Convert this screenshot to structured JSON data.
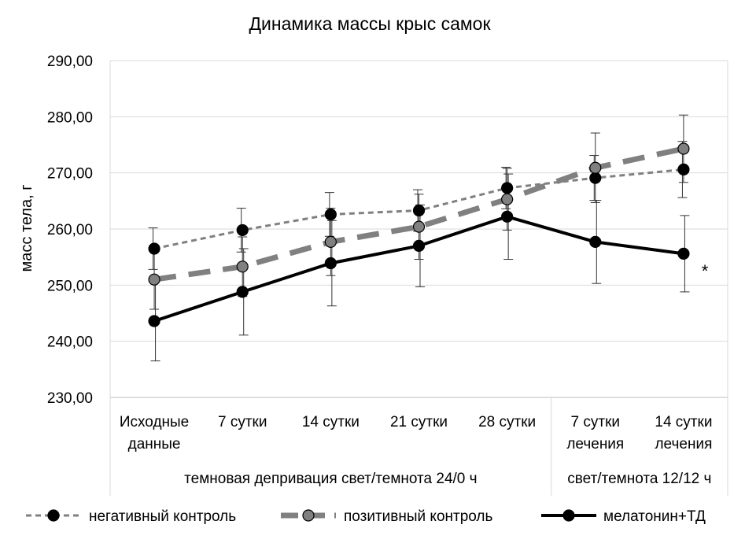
{
  "chart_data": {
    "type": "line",
    "title": "Динамика массы крыс самок",
    "ylabel": "масс тела, г",
    "ylim": [
      230,
      290
    ],
    "y_ticks": [
      "230,00",
      "240,00",
      "250,00",
      "260,00",
      "270,00",
      "280,00",
      "290,00"
    ],
    "y_tick_values": [
      230,
      240,
      250,
      260,
      270,
      280,
      290
    ],
    "categories": [
      [
        "Исходные",
        "данные"
      ],
      [
        "7 сутки"
      ],
      [
        "14 сутки"
      ],
      [
        "21 сутки"
      ],
      [
        "28 сутки"
      ],
      [
        "7 сутки",
        "лечения"
      ],
      [
        "14 сутки",
        "лечения"
      ]
    ],
    "groups": [
      {
        "label": "темновая депривация свет/темнота 24/0 ч",
        "span": [
          0,
          4
        ]
      },
      {
        "label": "свет/темнота 12/12 ч",
        "span": [
          5,
          6
        ]
      }
    ],
    "grid": true,
    "legend_position": "bottom",
    "annotation": "*",
    "series": [
      {
        "name": "негативный контроль",
        "style": "dotted-thin",
        "line_color": "#808080",
        "marker_color": "#000000",
        "values": [
          256.5,
          259.8,
          262.6,
          263.3,
          267.3,
          269.1,
          270.6
        ],
        "error": [
          3.7,
          3.9,
          3.9,
          3.7,
          3.7,
          4.0,
          5.0
        ]
      },
      {
        "name": "позитивный контроль",
        "style": "dashed-thick",
        "line_color": "#808080",
        "marker_color": "#808080",
        "values": [
          251.0,
          253.3,
          257.7,
          260.4,
          265.3,
          270.9,
          274.3
        ],
        "error": [
          5.3,
          5.3,
          6.0,
          5.8,
          5.5,
          6.2,
          6.0
        ]
      },
      {
        "name": "мелатонин+ТД",
        "style": "solid-thick",
        "line_color": "#000000",
        "marker_color": "#000000",
        "values": [
          243.6,
          248.8,
          253.9,
          257.0,
          262.2,
          257.7,
          255.6
        ],
        "error": [
          7.1,
          7.7,
          7.6,
          7.3,
          7.6,
          7.4,
          6.8
        ]
      }
    ]
  }
}
